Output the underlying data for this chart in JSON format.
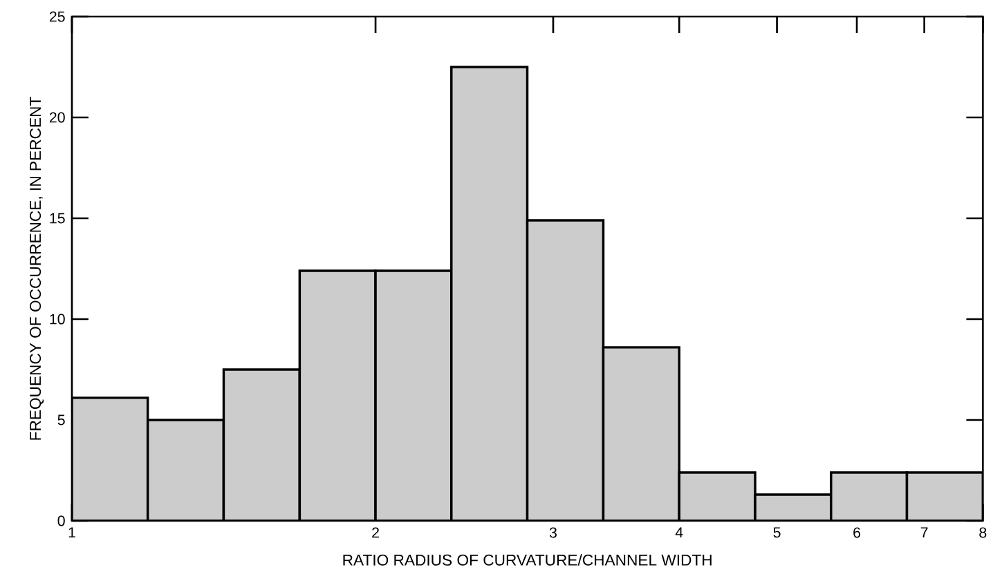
{
  "chart_data": {
    "type": "histogram",
    "xlabel": "RATIO RADIUS OF CURVATURE/CHANNEL WIDTH",
    "ylabel": "FREQUENCY OF OCCURRENCE, IN PERCENT",
    "bins": [
      1,
      1.189,
      1.414,
      1.682,
      2,
      2.378,
      2.828,
      3.364,
      4,
      4.757,
      5.657,
      6.727,
      8
    ],
    "values": [
      6.1,
      5.0,
      7.5,
      12.4,
      12.4,
      22.5,
      14.9,
      8.6,
      2.4,
      1.3,
      2.4,
      2.4
    ],
    "color": "#cccccc",
    "log": "x",
    "xlim": [
      1,
      8
    ],
    "xticks": [
      1,
      2,
      3,
      4,
      5,
      6,
      7,
      8
    ],
    "ylim": [
      0,
      25
    ],
    "yticks": [
      0,
      5,
      10,
      15,
      20,
      25
    ],
    "grid": false
  }
}
